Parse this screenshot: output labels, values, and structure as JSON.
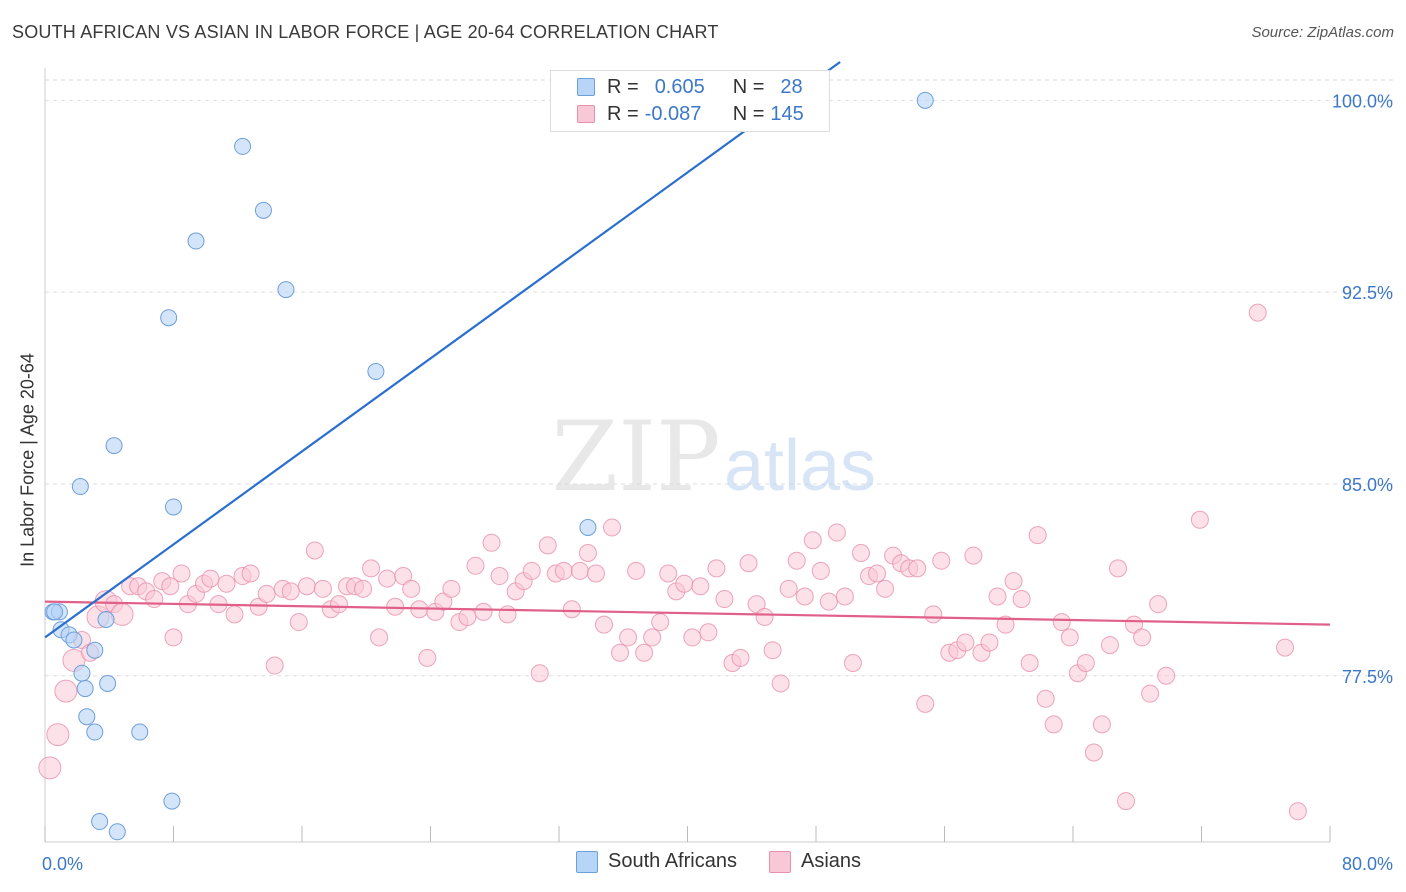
{
  "title": "SOUTH AFRICAN VS ASIAN IN LABOR FORCE | AGE 20-64 CORRELATION CHART",
  "source": "Source: ZipAtlas.com",
  "watermark": {
    "zip": "ZIP",
    "atlas": "atlas"
  },
  "stats": [
    {
      "r_label": "R =",
      "r_value": "0.605",
      "n_label": "N =",
      "n_value": "28",
      "color": "#6d9fdb"
    },
    {
      "r_label": "R =",
      "r_value": "-0.087",
      "n_label": "N =",
      "n_value": "145",
      "color": "#e88fae"
    }
  ],
  "legend": {
    "series1": "South Africans",
    "series2": "Asians"
  },
  "chart_data": {
    "type": "scatter",
    "title": "SOUTH AFRICAN VS ASIAN IN LABOR FORCE | AGE 20-64 CORRELATION CHART",
    "xlabel": "",
    "ylabel": "In Labor Force | Age 20-64",
    "xlim": [
      0,
      80
    ],
    "ylim": [
      71.0,
      101.5
    ],
    "x_tick_labels": [
      "0.0%",
      "80.0%"
    ],
    "y_ticks": [
      77.5,
      85.0,
      92.5,
      100.0
    ],
    "y_tick_labels": [
      "77.5%",
      "85.0%",
      "92.5%",
      "100.0%"
    ],
    "series": [
      {
        "name": "South Africans",
        "color": "#6d9fdb",
        "fill": "#b8d4f6",
        "trend": {
          "x0": 0.0,
          "y0": 79.0,
          "x1": 49.5,
          "y1": 101.5,
          "color": "#2a6fcf"
        },
        "points": [
          [
            0.5,
            80.0
          ],
          [
            0.9,
            80.0
          ],
          [
            1.0,
            79.3
          ],
          [
            1.5,
            79.1
          ],
          [
            1.8,
            78.9
          ],
          [
            2.3,
            77.6
          ],
          [
            2.5,
            77.0
          ],
          [
            3.1,
            78.5
          ],
          [
            3.8,
            79.7
          ],
          [
            3.9,
            77.2
          ],
          [
            2.2,
            84.9
          ],
          [
            4.3,
            86.5
          ],
          [
            7.7,
            91.5
          ],
          [
            7.9,
            72.6
          ],
          [
            8.0,
            84.1
          ],
          [
            9.4,
            94.5
          ],
          [
            12.3,
            98.2
          ],
          [
            13.6,
            95.7
          ],
          [
            15.0,
            92.6
          ],
          [
            20.6,
            89.4
          ],
          [
            2.6,
            75.9
          ],
          [
            3.1,
            75.3
          ],
          [
            5.9,
            75.3
          ],
          [
            3.4,
            71.8
          ],
          [
            4.5,
            71.4
          ],
          [
            33.8,
            83.3
          ],
          [
            54.8,
            100.0
          ],
          [
            0.6,
            80.0
          ]
        ]
      },
      {
        "name": "Asians",
        "color": "#e88fae",
        "fill": "#f9c8d6",
        "trend": {
          "x0": 0.0,
          "y0": 80.4,
          "x1": 80.0,
          "y1": 79.5,
          "color": "#e0608a"
        },
        "points": [
          [
            0.3,
            73.9
          ],
          [
            0.8,
            75.2
          ],
          [
            1.3,
            76.9
          ],
          [
            1.8,
            78.1
          ],
          [
            2.3,
            78.9
          ],
          [
            2.8,
            78.4
          ],
          [
            3.3,
            79.8
          ],
          [
            3.8,
            80.4
          ],
          [
            4.3,
            80.3
          ],
          [
            4.8,
            79.9
          ],
          [
            5.3,
            81.0
          ],
          [
            5.8,
            81.0
          ],
          [
            6.3,
            80.8
          ],
          [
            6.8,
            80.5
          ],
          [
            7.3,
            81.2
          ],
          [
            7.8,
            81.0
          ],
          [
            8.0,
            79.0
          ],
          [
            8.5,
            81.5
          ],
          [
            8.9,
            80.3
          ],
          [
            9.4,
            80.7
          ],
          [
            9.9,
            81.1
          ],
          [
            10.3,
            81.3
          ],
          [
            10.8,
            80.3
          ],
          [
            11.3,
            81.1
          ],
          [
            11.8,
            79.9
          ],
          [
            12.3,
            81.4
          ],
          [
            12.8,
            81.5
          ],
          [
            13.3,
            80.2
          ],
          [
            13.8,
            80.7
          ],
          [
            14.3,
            77.9
          ],
          [
            14.8,
            80.9
          ],
          [
            15.3,
            80.8
          ],
          [
            15.8,
            79.6
          ],
          [
            16.3,
            81.0
          ],
          [
            16.8,
            82.4
          ],
          [
            17.3,
            80.9
          ],
          [
            17.8,
            80.1
          ],
          [
            18.3,
            80.3
          ],
          [
            18.8,
            81.0
          ],
          [
            19.3,
            81.0
          ],
          [
            19.8,
            80.9
          ],
          [
            20.3,
            81.7
          ],
          [
            20.8,
            79.0
          ],
          [
            21.3,
            81.3
          ],
          [
            21.8,
            80.2
          ],
          [
            22.3,
            81.4
          ],
          [
            22.8,
            80.9
          ],
          [
            23.3,
            80.1
          ],
          [
            23.8,
            78.2
          ],
          [
            24.3,
            80.0
          ],
          [
            24.8,
            80.4
          ],
          [
            25.3,
            80.9
          ],
          [
            25.8,
            79.6
          ],
          [
            26.3,
            79.8
          ],
          [
            26.8,
            81.8
          ],
          [
            27.3,
            80.0
          ],
          [
            27.8,
            82.7
          ],
          [
            28.3,
            81.4
          ],
          [
            28.8,
            79.9
          ],
          [
            29.3,
            80.8
          ],
          [
            29.8,
            81.2
          ],
          [
            30.3,
            81.6
          ],
          [
            30.8,
            77.6
          ],
          [
            31.3,
            82.6
          ],
          [
            31.8,
            81.5
          ],
          [
            32.3,
            81.6
          ],
          [
            32.8,
            80.1
          ],
          [
            33.3,
            81.6
          ],
          [
            33.8,
            82.3
          ],
          [
            34.3,
            81.5
          ],
          [
            34.8,
            79.5
          ],
          [
            35.3,
            83.3
          ],
          [
            35.8,
            78.4
          ],
          [
            36.3,
            79.0
          ],
          [
            36.8,
            81.6
          ],
          [
            37.3,
            78.4
          ],
          [
            37.8,
            79.0
          ],
          [
            38.3,
            79.6
          ],
          [
            38.8,
            81.5
          ],
          [
            39.3,
            80.8
          ],
          [
            39.8,
            81.1
          ],
          [
            40.3,
            79.0
          ],
          [
            40.8,
            81.0
          ],
          [
            41.3,
            79.2
          ],
          [
            41.8,
            81.7
          ],
          [
            42.3,
            80.5
          ],
          [
            42.8,
            78.0
          ],
          [
            43.3,
            78.2
          ],
          [
            43.8,
            81.9
          ],
          [
            44.3,
            80.3
          ],
          [
            44.8,
            79.8
          ],
          [
            45.3,
            78.5
          ],
          [
            45.8,
            77.2
          ],
          [
            46.3,
            80.9
          ],
          [
            46.8,
            82.0
          ],
          [
            47.3,
            80.6
          ],
          [
            47.8,
            82.8
          ],
          [
            48.3,
            81.6
          ],
          [
            48.8,
            80.4
          ],
          [
            49.3,
            83.1
          ],
          [
            49.8,
            80.6
          ],
          [
            50.3,
            78.0
          ],
          [
            50.8,
            82.3
          ],
          [
            51.3,
            81.4
          ],
          [
            51.8,
            81.5
          ],
          [
            52.3,
            80.9
          ],
          [
            52.8,
            82.2
          ],
          [
            53.3,
            81.9
          ],
          [
            53.8,
            81.7
          ],
          [
            54.3,
            81.7
          ],
          [
            54.8,
            76.4
          ],
          [
            55.3,
            79.9
          ],
          [
            55.8,
            82.0
          ],
          [
            56.3,
            78.4
          ],
          [
            56.8,
            78.5
          ],
          [
            57.3,
            78.8
          ],
          [
            57.8,
            82.2
          ],
          [
            58.3,
            78.4
          ],
          [
            58.8,
            78.8
          ],
          [
            59.3,
            80.6
          ],
          [
            59.8,
            79.5
          ],
          [
            60.3,
            81.2
          ],
          [
            60.8,
            80.5
          ],
          [
            61.3,
            78.0
          ],
          [
            61.8,
            83.0
          ],
          [
            62.3,
            76.6
          ],
          [
            62.8,
            75.6
          ],
          [
            63.3,
            79.6
          ],
          [
            63.8,
            79.0
          ],
          [
            64.3,
            77.6
          ],
          [
            64.8,
            78.0
          ],
          [
            65.3,
            74.5
          ],
          [
            65.8,
            75.6
          ],
          [
            66.3,
            78.7
          ],
          [
            66.8,
            81.7
          ],
          [
            67.3,
            72.6
          ],
          [
            67.8,
            79.5
          ],
          [
            68.3,
            79.0
          ],
          [
            68.8,
            76.8
          ],
          [
            69.3,
            80.3
          ],
          [
            69.8,
            77.5
          ],
          [
            71.9,
            83.6
          ],
          [
            75.5,
            91.7
          ],
          [
            77.2,
            78.6
          ],
          [
            78.0,
            72.2
          ]
        ],
        "large_points": [
          [
            0.3,
            73.9
          ],
          [
            0.8,
            75.2
          ],
          [
            1.3,
            76.9
          ],
          [
            1.8,
            78.1
          ],
          [
            3.3,
            79.8
          ],
          [
            3.8,
            80.4
          ],
          [
            4.8,
            79.9
          ]
        ]
      }
    ]
  }
}
